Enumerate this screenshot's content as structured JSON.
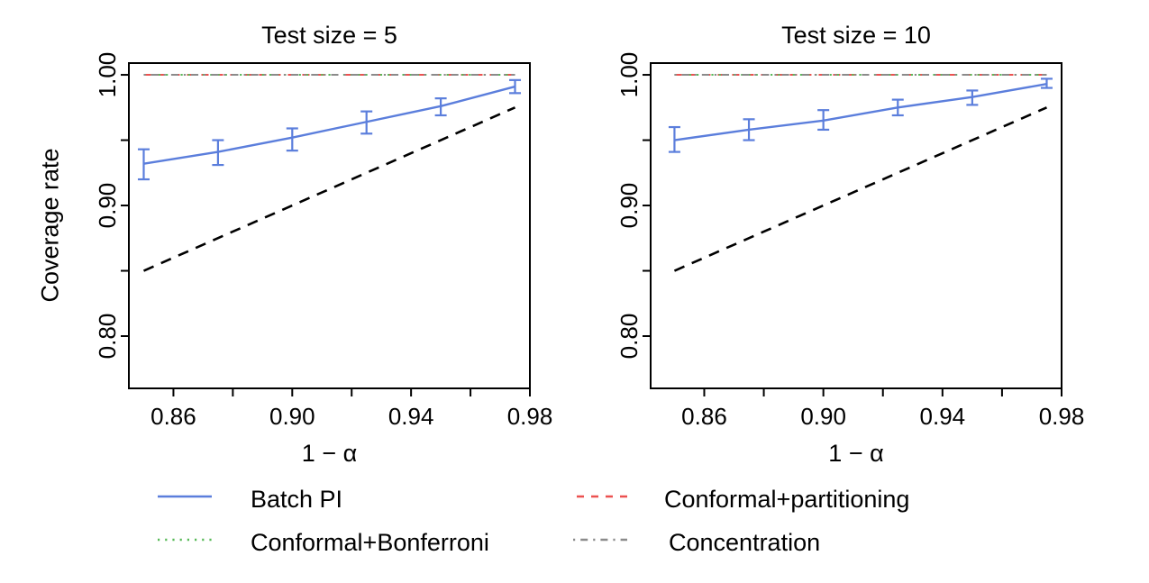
{
  "figure": {
    "background": "#ffffff",
    "axis_color": "#000000"
  },
  "chart_data": [
    {
      "type": "line",
      "title": "Test size = 5",
      "xlabel": "1 − α",
      "ylabel": "Coverage rate",
      "xlim": [
        0.845,
        0.98
      ],
      "ylim": [
        0.76,
        1.009
      ],
      "grid": false,
      "x_ticks": [
        0.86,
        0.88,
        0.9,
        0.92,
        0.94,
        0.96,
        0.98
      ],
      "x_tick_labels": [
        "0.86",
        "",
        "0.90",
        "",
        "0.94",
        "",
        "0.98"
      ],
      "y_ticks": [
        0.8,
        0.85,
        0.9,
        0.95,
        1.0
      ],
      "y_tick_labels": [
        "0.80",
        "",
        "0.90",
        "",
        "1.00"
      ],
      "series": [
        {
          "name": "Batch PI",
          "color": "#5b7edc",
          "style": "solid",
          "width": 2.4,
          "x": [
            0.85,
            0.875,
            0.9,
            0.925,
            0.95,
            0.975
          ],
          "values": [
            0.932,
            0.941,
            0.952,
            0.964,
            0.976,
            0.991
          ],
          "err_low": [
            0.92,
            0.931,
            0.942,
            0.955,
            0.969,
            0.986
          ],
          "err_high": [
            0.943,
            0.95,
            0.959,
            0.972,
            0.982,
            0.996
          ]
        },
        {
          "name": "Conformal+partitioning",
          "color": "#ec5150",
          "style": "dashed",
          "width": 2,
          "x": [
            0.85,
            0.975
          ],
          "values": [
            1.0,
            1.0
          ]
        },
        {
          "name": "Conformal+Bonferroni",
          "color": "#58ba58",
          "style": "dotted",
          "width": 2,
          "x": [
            0.85,
            0.975
          ],
          "values": [
            1.0,
            1.0
          ]
        },
        {
          "name": "Concentration",
          "color": "#8b8b8b",
          "style": "dashdot",
          "width": 2,
          "x": [
            0.85,
            0.975
          ],
          "values": [
            1.0,
            1.0
          ]
        },
        {
          "name": "y = x",
          "color": "#000000",
          "style": "dashed_long",
          "width": 2.6,
          "x": [
            0.85,
            0.975
          ],
          "values": [
            0.85,
            0.975
          ]
        }
      ]
    },
    {
      "type": "line",
      "title": "Test size = 10",
      "xlabel": "1 − α",
      "ylabel": "Coverage rate",
      "xlim": [
        0.842,
        0.98
      ],
      "ylim": [
        0.76,
        1.009
      ],
      "grid": false,
      "x_ticks": [
        0.86,
        0.88,
        0.9,
        0.92,
        0.94,
        0.96,
        0.98
      ],
      "x_tick_labels": [
        "0.86",
        "",
        "0.90",
        "",
        "0.94",
        "",
        "0.98"
      ],
      "y_ticks": [
        0.8,
        0.85,
        0.9,
        0.95,
        1.0
      ],
      "y_tick_labels": [
        "0.80",
        "",
        "0.90",
        "",
        "1.00"
      ],
      "series": [
        {
          "name": "Batch PI",
          "color": "#5b7edc",
          "style": "solid",
          "width": 2.4,
          "x": [
            0.85,
            0.875,
            0.9,
            0.925,
            0.95,
            0.975
          ],
          "values": [
            0.95,
            0.958,
            0.965,
            0.975,
            0.983,
            0.993
          ],
          "err_low": [
            0.941,
            0.95,
            0.958,
            0.969,
            0.977,
            0.99
          ],
          "err_high": [
            0.96,
            0.966,
            0.973,
            0.981,
            0.988,
            0.997
          ]
        },
        {
          "name": "Conformal+partitioning",
          "color": "#ec5150",
          "style": "dashed",
          "width": 2,
          "x": [
            0.85,
            0.975
          ],
          "values": [
            1.0,
            1.0
          ]
        },
        {
          "name": "Conformal+Bonferroni",
          "color": "#58ba58",
          "style": "dotted",
          "width": 2,
          "x": [
            0.85,
            0.975
          ],
          "values": [
            1.0,
            1.0
          ]
        },
        {
          "name": "Concentration",
          "color": "#8b8b8b",
          "style": "dashdot",
          "width": 2,
          "x": [
            0.85,
            0.975
          ],
          "values": [
            1.0,
            1.0
          ]
        },
        {
          "name": "y = x",
          "color": "#000000",
          "style": "dashed_long",
          "width": 2.6,
          "x": [
            0.85,
            0.975
          ],
          "values": [
            0.85,
            0.975
          ]
        }
      ]
    }
  ],
  "legend": {
    "items": [
      {
        "label": "Batch PI",
        "color": "#5b7edc",
        "style": "solid"
      },
      {
        "label": "Conformal+partitioning",
        "color": "#ec5150",
        "style": "dashed"
      },
      {
        "label": "Conformal+Bonferroni",
        "color": "#58ba58",
        "style": "dotted"
      },
      {
        "label": "Concentration",
        "color": "#8b8b8b",
        "style": "dashdot"
      }
    ]
  }
}
